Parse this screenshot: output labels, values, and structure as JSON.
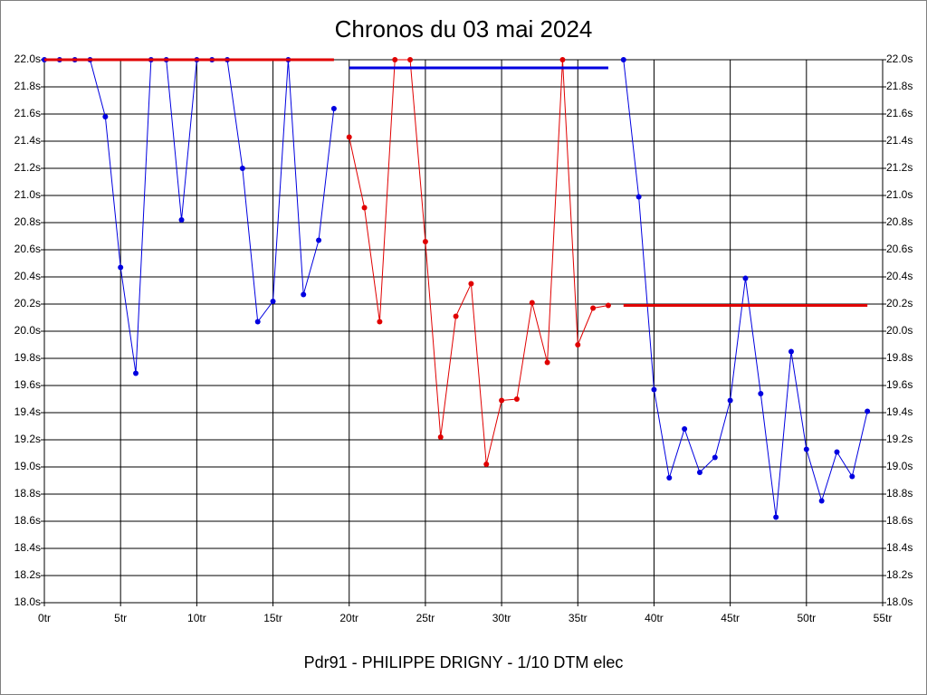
{
  "chart_data": {
    "type": "line",
    "title": "Chronos du 03 mai 2024",
    "x_label": "Pdr91 - PHILIPPE DRIGNY - 1/10 DTM elec",
    "grid": true,
    "xlim": [
      0,
      55
    ],
    "ylim": [
      18.0,
      22.0
    ],
    "xticks": [
      {
        "value": 0,
        "label": "0tr"
      },
      {
        "value": 5,
        "label": "5tr"
      },
      {
        "value": 10,
        "label": "10tr"
      },
      {
        "value": 15,
        "label": "15tr"
      },
      {
        "value": 20,
        "label": "20tr"
      },
      {
        "value": 25,
        "label": "25tr"
      },
      {
        "value": 30,
        "label": "30tr"
      },
      {
        "value": 35,
        "label": "35tr"
      },
      {
        "value": 40,
        "label": "40tr"
      },
      {
        "value": 45,
        "label": "45tr"
      },
      {
        "value": 50,
        "label": "50tr"
      },
      {
        "value": 55,
        "label": "55tr"
      }
    ],
    "yticks": [
      {
        "value": 18.0,
        "label": "18.0s"
      },
      {
        "value": 18.2,
        "label": "18.2s"
      },
      {
        "value": 18.4,
        "label": "18.4s"
      },
      {
        "value": 18.6,
        "label": "18.6s"
      },
      {
        "value": 18.8,
        "label": "18.8s"
      },
      {
        "value": 19.0,
        "label": "19.0s"
      },
      {
        "value": 19.2,
        "label": "19.2s"
      },
      {
        "value": 19.4,
        "label": "19.4s"
      },
      {
        "value": 19.6,
        "label": "19.6s"
      },
      {
        "value": 19.8,
        "label": "19.8s"
      },
      {
        "value": 20.0,
        "label": "20.0s"
      },
      {
        "value": 20.2,
        "label": "20.2s"
      },
      {
        "value": 20.4,
        "label": "20.4s"
      },
      {
        "value": 20.6,
        "label": "20.6s"
      },
      {
        "value": 20.8,
        "label": "20.8s"
      },
      {
        "value": 21.0,
        "label": "21.0s"
      },
      {
        "value": 21.2,
        "label": "21.2s"
      },
      {
        "value": 21.4,
        "label": "21.4s"
      },
      {
        "value": 21.6,
        "label": "21.6s"
      },
      {
        "value": 21.8,
        "label": "21.8s"
      },
      {
        "value": 22.0,
        "label": "22.0s"
      }
    ],
    "series": [
      {
        "color": "#0000e0",
        "markers": true,
        "width": 1,
        "x": [
          0,
          1,
          2,
          3,
          4,
          5,
          6,
          7,
          8,
          9,
          10,
          11,
          12,
          13,
          14,
          15,
          16,
          17,
          18,
          19
        ],
        "values": [
          22.0,
          22.0,
          22.0,
          22.0,
          21.58,
          20.47,
          19.69,
          22.0,
          22.0,
          20.82,
          22.0,
          22.0,
          22.0,
          21.2,
          20.07,
          20.22,
          22.0,
          20.27,
          20.67,
          21.64
        ]
      },
      {
        "color": "#e00000",
        "markers": true,
        "width": 1,
        "x": [
          20,
          21,
          22,
          23,
          24,
          25,
          26,
          27,
          28,
          29,
          30,
          31,
          32,
          33,
          34,
          35,
          36,
          37
        ],
        "values": [
          21.43,
          20.91,
          20.07,
          22.0,
          22.0,
          20.66,
          19.22,
          20.11,
          20.35,
          19.02,
          19.49,
          19.5,
          20.21,
          19.77,
          22.0,
          19.9,
          20.17,
          20.19
        ]
      },
      {
        "color": "#0000e0",
        "markers": true,
        "width": 1,
        "x": [
          38,
          39,
          40,
          41,
          42,
          43,
          44,
          45,
          46,
          47,
          48,
          49,
          50,
          51,
          52,
          53,
          54
        ],
        "values": [
          22.0,
          20.99,
          19.57,
          18.92,
          19.28,
          18.96,
          19.07,
          19.49,
          20.39,
          19.54,
          18.63,
          19.85,
          19.13,
          18.75,
          19.11,
          18.93,
          19.41
        ]
      },
      {
        "color": "#e00000",
        "markers": false,
        "width": 3,
        "x": [
          0,
          19
        ],
        "values": [
          22.0,
          22.0
        ]
      },
      {
        "color": "#0000e0",
        "markers": false,
        "width": 3,
        "x": [
          20,
          37
        ],
        "values": [
          21.94,
          21.94
        ]
      },
      {
        "color": "#e00000",
        "markers": false,
        "width": 3,
        "x": [
          38,
          54
        ],
        "values": [
          20.19,
          20.19
        ]
      }
    ]
  }
}
